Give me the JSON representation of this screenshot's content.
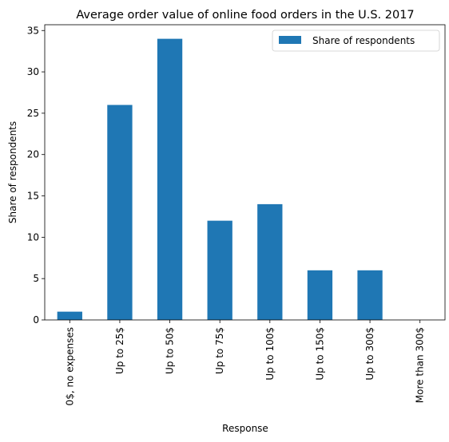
{
  "chart_data": {
    "type": "bar",
    "title": "Average order value of online food orders in the U.S. 2017",
    "xlabel": "Response",
    "ylabel": "Share of respondents",
    "categories": [
      "0$, no expenses",
      "Up to 25$",
      "Up to 50$",
      "Up to 75$",
      "Up to 100$",
      "Up to 150$",
      "Up to 300$",
      "More than 300$"
    ],
    "series": [
      {
        "name": "Share of respondents",
        "values": [
          1,
          26,
          34,
          12,
          14,
          6,
          6,
          0
        ],
        "color": "#1f77b4"
      }
    ],
    "ylim": [
      0,
      35.7
    ],
    "yticks": [
      0,
      5,
      10,
      15,
      20,
      25,
      30,
      35
    ],
    "grid": false,
    "legend": "top-right"
  }
}
